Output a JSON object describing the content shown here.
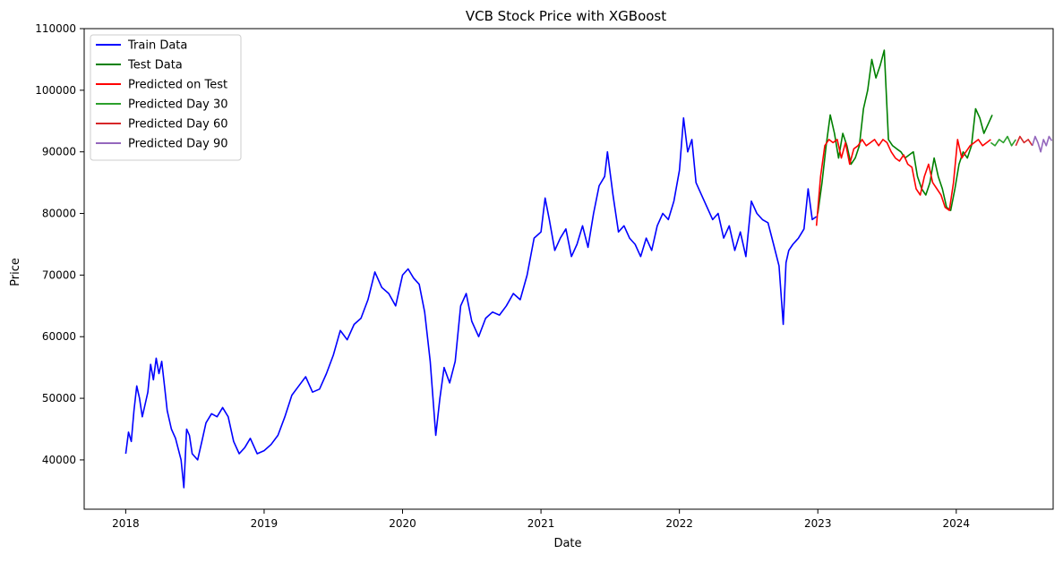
{
  "chart_data": {
    "type": "line",
    "title": "VCB Stock Price with XGBoost",
    "xlabel": "Date",
    "ylabel": "Price",
    "xlim": [
      2017.7,
      2024.7
    ],
    "ylim": [
      32000,
      110000
    ],
    "x_ticks": [
      {
        "value": 2018,
        "label": "2018"
      },
      {
        "value": 2019,
        "label": "2019"
      },
      {
        "value": 2020,
        "label": "2020"
      },
      {
        "value": 2021,
        "label": "2021"
      },
      {
        "value": 2022,
        "label": "2022"
      },
      {
        "value": 2023,
        "label": "2023"
      },
      {
        "value": 2024,
        "label": "2024"
      }
    ],
    "y_ticks": [
      {
        "value": 40000,
        "label": "40000"
      },
      {
        "value": 50000,
        "label": "50000"
      },
      {
        "value": 60000,
        "label": "60000"
      },
      {
        "value": 70000,
        "label": "70000"
      },
      {
        "value": 80000,
        "label": "80000"
      },
      {
        "value": 90000,
        "label": "90000"
      },
      {
        "value": 100000,
        "label": "100000"
      },
      {
        "value": 110000,
        "label": "110000"
      }
    ],
    "grid": false,
    "legend_position": "top-left",
    "series": [
      {
        "name": "Train Data",
        "color": "#0000ff",
        "x": [
          2018.0,
          2018.02,
          2018.04,
          2018.06,
          2018.08,
          2018.1,
          2018.12,
          2018.14,
          2018.16,
          2018.18,
          2018.2,
          2018.22,
          2018.24,
          2018.26,
          2018.28,
          2018.3,
          2018.33,
          2018.36,
          2018.4,
          2018.42,
          2018.44,
          2018.46,
          2018.48,
          2018.52,
          2018.55,
          2018.58,
          2018.62,
          2018.66,
          2018.7,
          2018.74,
          2018.78,
          2018.82,
          2018.86,
          2018.9,
          2018.95,
          2019.0,
          2019.05,
          2019.1,
          2019.15,
          2019.2,
          2019.25,
          2019.3,
          2019.35,
          2019.4,
          2019.45,
          2019.5,
          2019.55,
          2019.6,
          2019.65,
          2019.7,
          2019.75,
          2019.8,
          2019.85,
          2019.9,
          2019.95,
          2020.0,
          2020.04,
          2020.08,
          2020.12,
          2020.16,
          2020.2,
          2020.24,
          2020.27,
          2020.3,
          2020.34,
          2020.38,
          2020.42,
          2020.46,
          2020.5,
          2020.55,
          2020.6,
          2020.65,
          2020.7,
          2020.75,
          2020.8,
          2020.85,
          2020.9,
          2020.95,
          2021.0,
          2021.03,
          2021.06,
          2021.1,
          2021.14,
          2021.18,
          2021.22,
          2021.26,
          2021.3,
          2021.34,
          2021.38,
          2021.42,
          2021.46,
          2021.48,
          2021.52,
          2021.56,
          2021.6,
          2021.64,
          2021.68,
          2021.72,
          2021.76,
          2021.8,
          2021.84,
          2021.88,
          2021.92,
          2021.96,
          2022.0,
          2022.03,
          2022.06,
          2022.09,
          2022.12,
          2022.16,
          2022.2,
          2022.24,
          2022.28,
          2022.32,
          2022.36,
          2022.4,
          2022.44,
          2022.48,
          2022.52,
          2022.56,
          2022.6,
          2022.64,
          2022.68,
          2022.72,
          2022.75,
          2022.77,
          2022.79,
          2022.82,
          2022.86,
          2022.9,
          2022.93,
          2022.96,
          2022.99
        ],
        "y": [
          41000,
          44500,
          43000,
          48000,
          52000,
          50000,
          47000,
          49000,
          51000,
          55500,
          53000,
          56500,
          54000,
          56000,
          52000,
          48000,
          45000,
          43500,
          40000,
          35500,
          45000,
          44000,
          41000,
          40000,
          43000,
          46000,
          47500,
          47000,
          48500,
          47000,
          43000,
          41000,
          42000,
          43500,
          41000,
          41500,
          42500,
          44000,
          47000,
          50500,
          52000,
          53500,
          51000,
          51500,
          54000,
          57000,
          61000,
          59500,
          62000,
          63000,
          66000,
          70500,
          68000,
          67000,
          65000,
          70000,
          71000,
          69500,
          68500,
          64000,
          56000,
          44000,
          50000,
          55000,
          52500,
          56000,
          65000,
          67000,
          62500,
          60000,
          63000,
          64000,
          63500,
          65000,
          67000,
          66000,
          70000,
          76000,
          77000,
          82500,
          79000,
          74000,
          76000,
          77500,
          73000,
          75000,
          78000,
          74500,
          80000,
          84500,
          86000,
          90000,
          83000,
          77000,
          78000,
          76000,
          75000,
          73000,
          76000,
          74000,
          78000,
          80000,
          79000,
          82000,
          87000,
          95500,
          90000,
          92000,
          85000,
          83000,
          81000,
          79000,
          80000,
          76000,
          78000,
          74000,
          77000,
          73000,
          82000,
          80000,
          79000,
          78500,
          75000,
          71500,
          62000,
          72000,
          74000,
          75000,
          76000,
          77500,
          84000,
          79000,
          79500
        ]
      },
      {
        "name": "Test Data",
        "color": "#008000",
        "x": [
          2023.0,
          2023.03,
          2023.06,
          2023.09,
          2023.12,
          2023.15,
          2023.18,
          2023.21,
          2023.24,
          2023.27,
          2023.3,
          2023.33,
          2023.36,
          2023.39,
          2023.42,
          2023.45,
          2023.48,
          2023.51,
          2023.54,
          2023.57,
          2023.6,
          2023.63,
          2023.66,
          2023.69,
          2023.72,
          2023.75,
          2023.78,
          2023.81,
          2023.84,
          2023.87,
          2023.9,
          2023.93,
          2023.96,
          2023.99,
          2024.02,
          2024.05,
          2024.08,
          2024.11,
          2024.14,
          2024.17,
          2024.2,
          2024.23,
          2024.26
        ],
        "y": [
          80000,
          85000,
          91000,
          96000,
          93000,
          89000,
          93000,
          91000,
          88000,
          89000,
          91000,
          97000,
          100000,
          105000,
          102000,
          104000,
          106500,
          92000,
          91000,
          90500,
          90000,
          89000,
          89500,
          90000,
          86000,
          84000,
          83000,
          85000,
          89000,
          86000,
          84000,
          81000,
          80500,
          84000,
          88000,
          90000,
          89000,
          91000,
          97000,
          95500,
          93000,
          94500,
          96000
        ]
      },
      {
        "name": "Predicted on Test",
        "color": "#ff0000",
        "x": [
          2022.99,
          2023.02,
          2023.05,
          2023.08,
          2023.11,
          2023.14,
          2023.17,
          2023.2,
          2023.23,
          2023.26,
          2023.29,
          2023.32,
          2023.35,
          2023.38,
          2023.41,
          2023.44,
          2023.47,
          2023.5,
          2023.53,
          2023.56,
          2023.59,
          2023.62,
          2023.65,
          2023.68,
          2023.71,
          2023.74,
          2023.77,
          2023.8,
          2023.83,
          2023.86,
          2023.89,
          2023.92,
          2023.95,
          2023.98,
          2024.01,
          2024.04,
          2024.07,
          2024.1,
          2024.13,
          2024.16,
          2024.19,
          2024.22,
          2024.25
        ],
        "y": [
          78000,
          86000,
          91000,
          92000,
          91500,
          92000,
          89000,
          91500,
          88000,
          90500,
          91000,
          92000,
          91000,
          91500,
          92000,
          91000,
          92000,
          91500,
          90000,
          89000,
          88500,
          89500,
          88000,
          87500,
          84000,
          83000,
          86000,
          88000,
          85000,
          84000,
          83000,
          81000,
          80500,
          85000,
          92000,
          89000,
          90000,
          91000,
          91500,
          92000,
          91000,
          91500,
          92000
        ]
      },
      {
        "name": "Predicted Day 30",
        "color": "#2ca02c",
        "x": [
          2024.25,
          2024.28,
          2024.31,
          2024.34,
          2024.37,
          2024.4,
          2024.43
        ],
        "y": [
          91500,
          91000,
          92000,
          91500,
          92500,
          91000,
          92000
        ]
      },
      {
        "name": "Predicted Day 60",
        "color": "#d62728",
        "x": [
          2024.43,
          2024.46,
          2024.49,
          2024.52,
          2024.55
        ],
        "y": [
          91000,
          92500,
          91500,
          92000,
          91000
        ]
      },
      {
        "name": "Predicted Day 90",
        "color": "#9467bd",
        "x": [
          2024.55,
          2024.57,
          2024.59,
          2024.61,
          2024.63,
          2024.65,
          2024.67,
          2024.69
        ],
        "y": [
          91000,
          92500,
          91500,
          90000,
          92000,
          91000,
          92500,
          91800
        ]
      }
    ]
  }
}
